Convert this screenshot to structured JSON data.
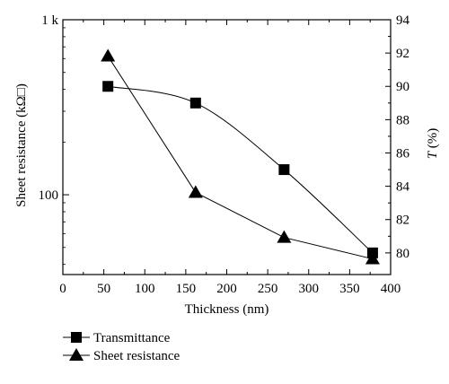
{
  "chart_data": {
    "type": "line",
    "xlabel": "Thickness (nm)",
    "ylabel_left": "Sheet resistance (kΩ□)",
    "ylabel_right_italic": "T",
    "ylabel_right_rest": " (%)",
    "x_ticks": [
      0,
      50,
      100,
      150,
      200,
      250,
      300,
      350,
      400
    ],
    "xlim": [
      0,
      400
    ],
    "y_left": {
      "scale": "log",
      "ylim": [
        35,
        1000
      ],
      "ticks": [
        {
          "value": 100,
          "label": "100"
        },
        {
          "value": 1000,
          "label": "1 k"
        }
      ]
    },
    "y_right": {
      "scale": "linear",
      "ylim": [
        78.7,
        94
      ],
      "ticks": [
        80,
        82,
        84,
        86,
        88,
        90,
        92,
        94
      ]
    },
    "series": [
      {
        "name": "Transmittance",
        "marker": "square",
        "axis": "right",
        "smooth": true,
        "x": [
          55,
          162,
          270,
          378
        ],
        "y": [
          90.0,
          89.0,
          85.0,
          80.0
        ]
      },
      {
        "name": "Sheet resistance",
        "marker": "triangle",
        "axis": "left",
        "smooth": false,
        "x": [
          55,
          162,
          270,
          378
        ],
        "y": [
          620,
          103,
          57,
          43
        ]
      }
    ],
    "legend_position": "bottom-left",
    "grid": false,
    "color": "#000000"
  }
}
